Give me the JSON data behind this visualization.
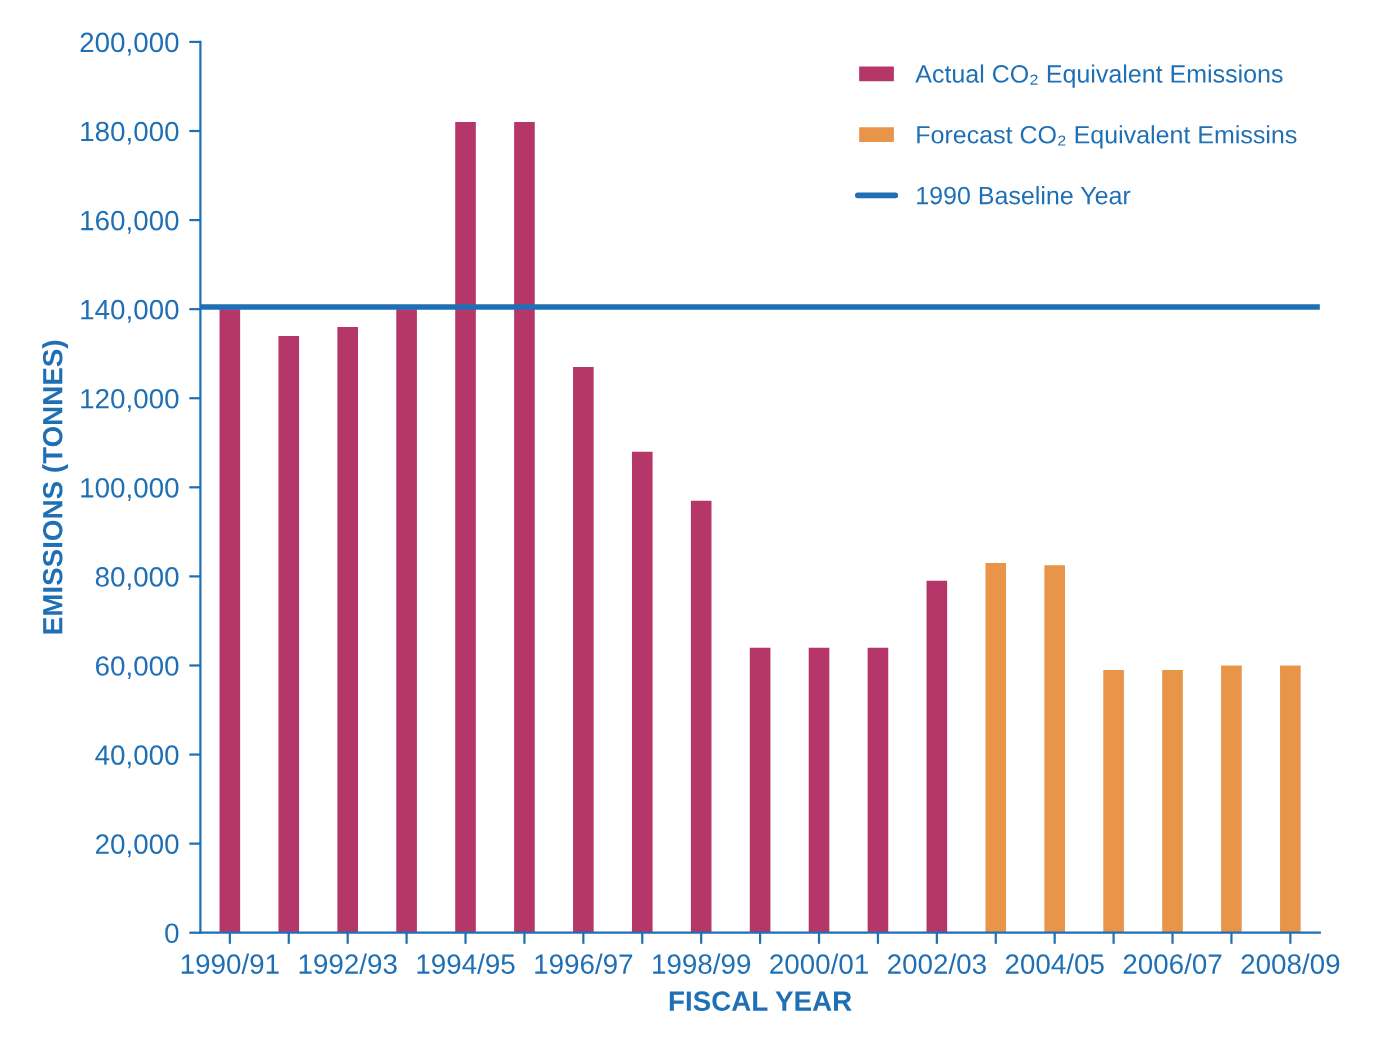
{
  "chart_data": {
    "type": "bar",
    "xlabel": "FISCAL YEAR",
    "ylabel": "EMISSIONS (TONNES)",
    "categories": [
      "1990/91",
      null,
      "1992/93",
      null,
      "1994/95",
      null,
      "1996/97",
      null,
      "1998/99",
      null,
      "2000/01",
      null,
      "2002/03",
      null,
      "2004/05",
      null,
      "2006/07",
      null,
      "2008/09"
    ],
    "series": [
      {
        "name": "Actual CO₂ Equivalent Emissions",
        "color": "#b5376a",
        "values": [
          140000,
          134000,
          136000,
          140000,
          182000,
          182000,
          127000,
          108000,
          97000,
          64000,
          64000,
          64000,
          79000,
          null,
          null,
          null,
          null,
          null,
          null
        ]
      },
      {
        "name": "Forecast CO₂ Equivalent Emissins",
        "color": "#e8954a",
        "values": [
          null,
          null,
          null,
          null,
          null,
          null,
          null,
          null,
          null,
          null,
          null,
          null,
          null,
          83000,
          82500,
          59000,
          59000,
          60000,
          60000
        ]
      }
    ],
    "ref_lines": [
      {
        "axis": "y",
        "value": 140500,
        "label": "1990 Baseline Year",
        "color": "#1f6fb5",
        "line_style": "solid"
      }
    ],
    "ylim": [
      0,
      200000
    ],
    "yticks": [
      {
        "value": 0,
        "label": "0"
      },
      {
        "value": 20000,
        "label": "20,000"
      },
      {
        "value": 40000,
        "label": "40,000"
      },
      {
        "value": 60000,
        "label": "60,000"
      },
      {
        "value": 80000,
        "label": "80,000"
      },
      {
        "value": 100000,
        "label": "100,000"
      },
      {
        "value": 120000,
        "label": "120,000"
      },
      {
        "value": 140000,
        "label": "140,000"
      },
      {
        "value": 160000,
        "label": "160,000"
      },
      {
        "value": 180000,
        "label": "180,000"
      },
      {
        "value": 200000,
        "label": "200,000"
      }
    ],
    "grid": false,
    "legend": "top right"
  }
}
